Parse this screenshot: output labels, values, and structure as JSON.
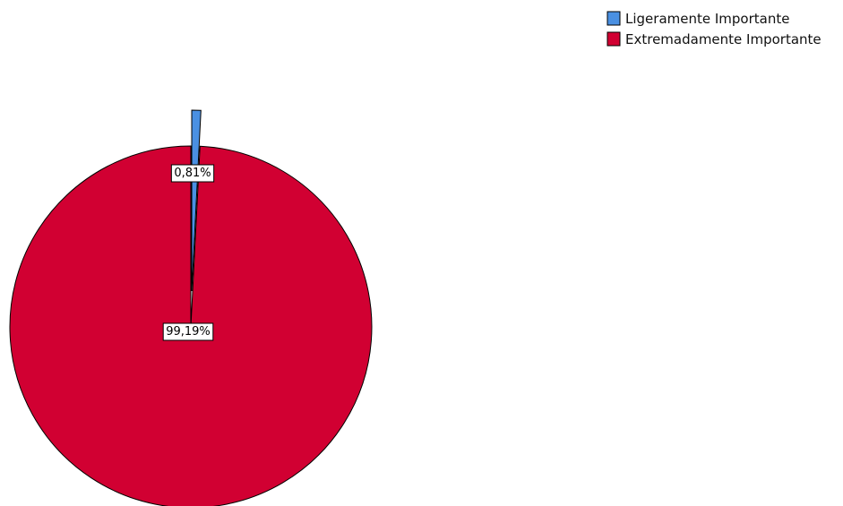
{
  "chart_data": {
    "type": "pie",
    "title": "",
    "categories": [
      "Ligeramente Importante",
      "Extremadamente Importante"
    ],
    "values": [
      0.81,
      99.19
    ],
    "labels": [
      "0,81%",
      "99,19%"
    ],
    "colors": [
      "#4a90e2",
      "#d10032"
    ],
    "exploded": [
      true,
      false
    ],
    "start_angle_deg": 0,
    "direction": "clockwise",
    "legend_position": "top-right"
  }
}
